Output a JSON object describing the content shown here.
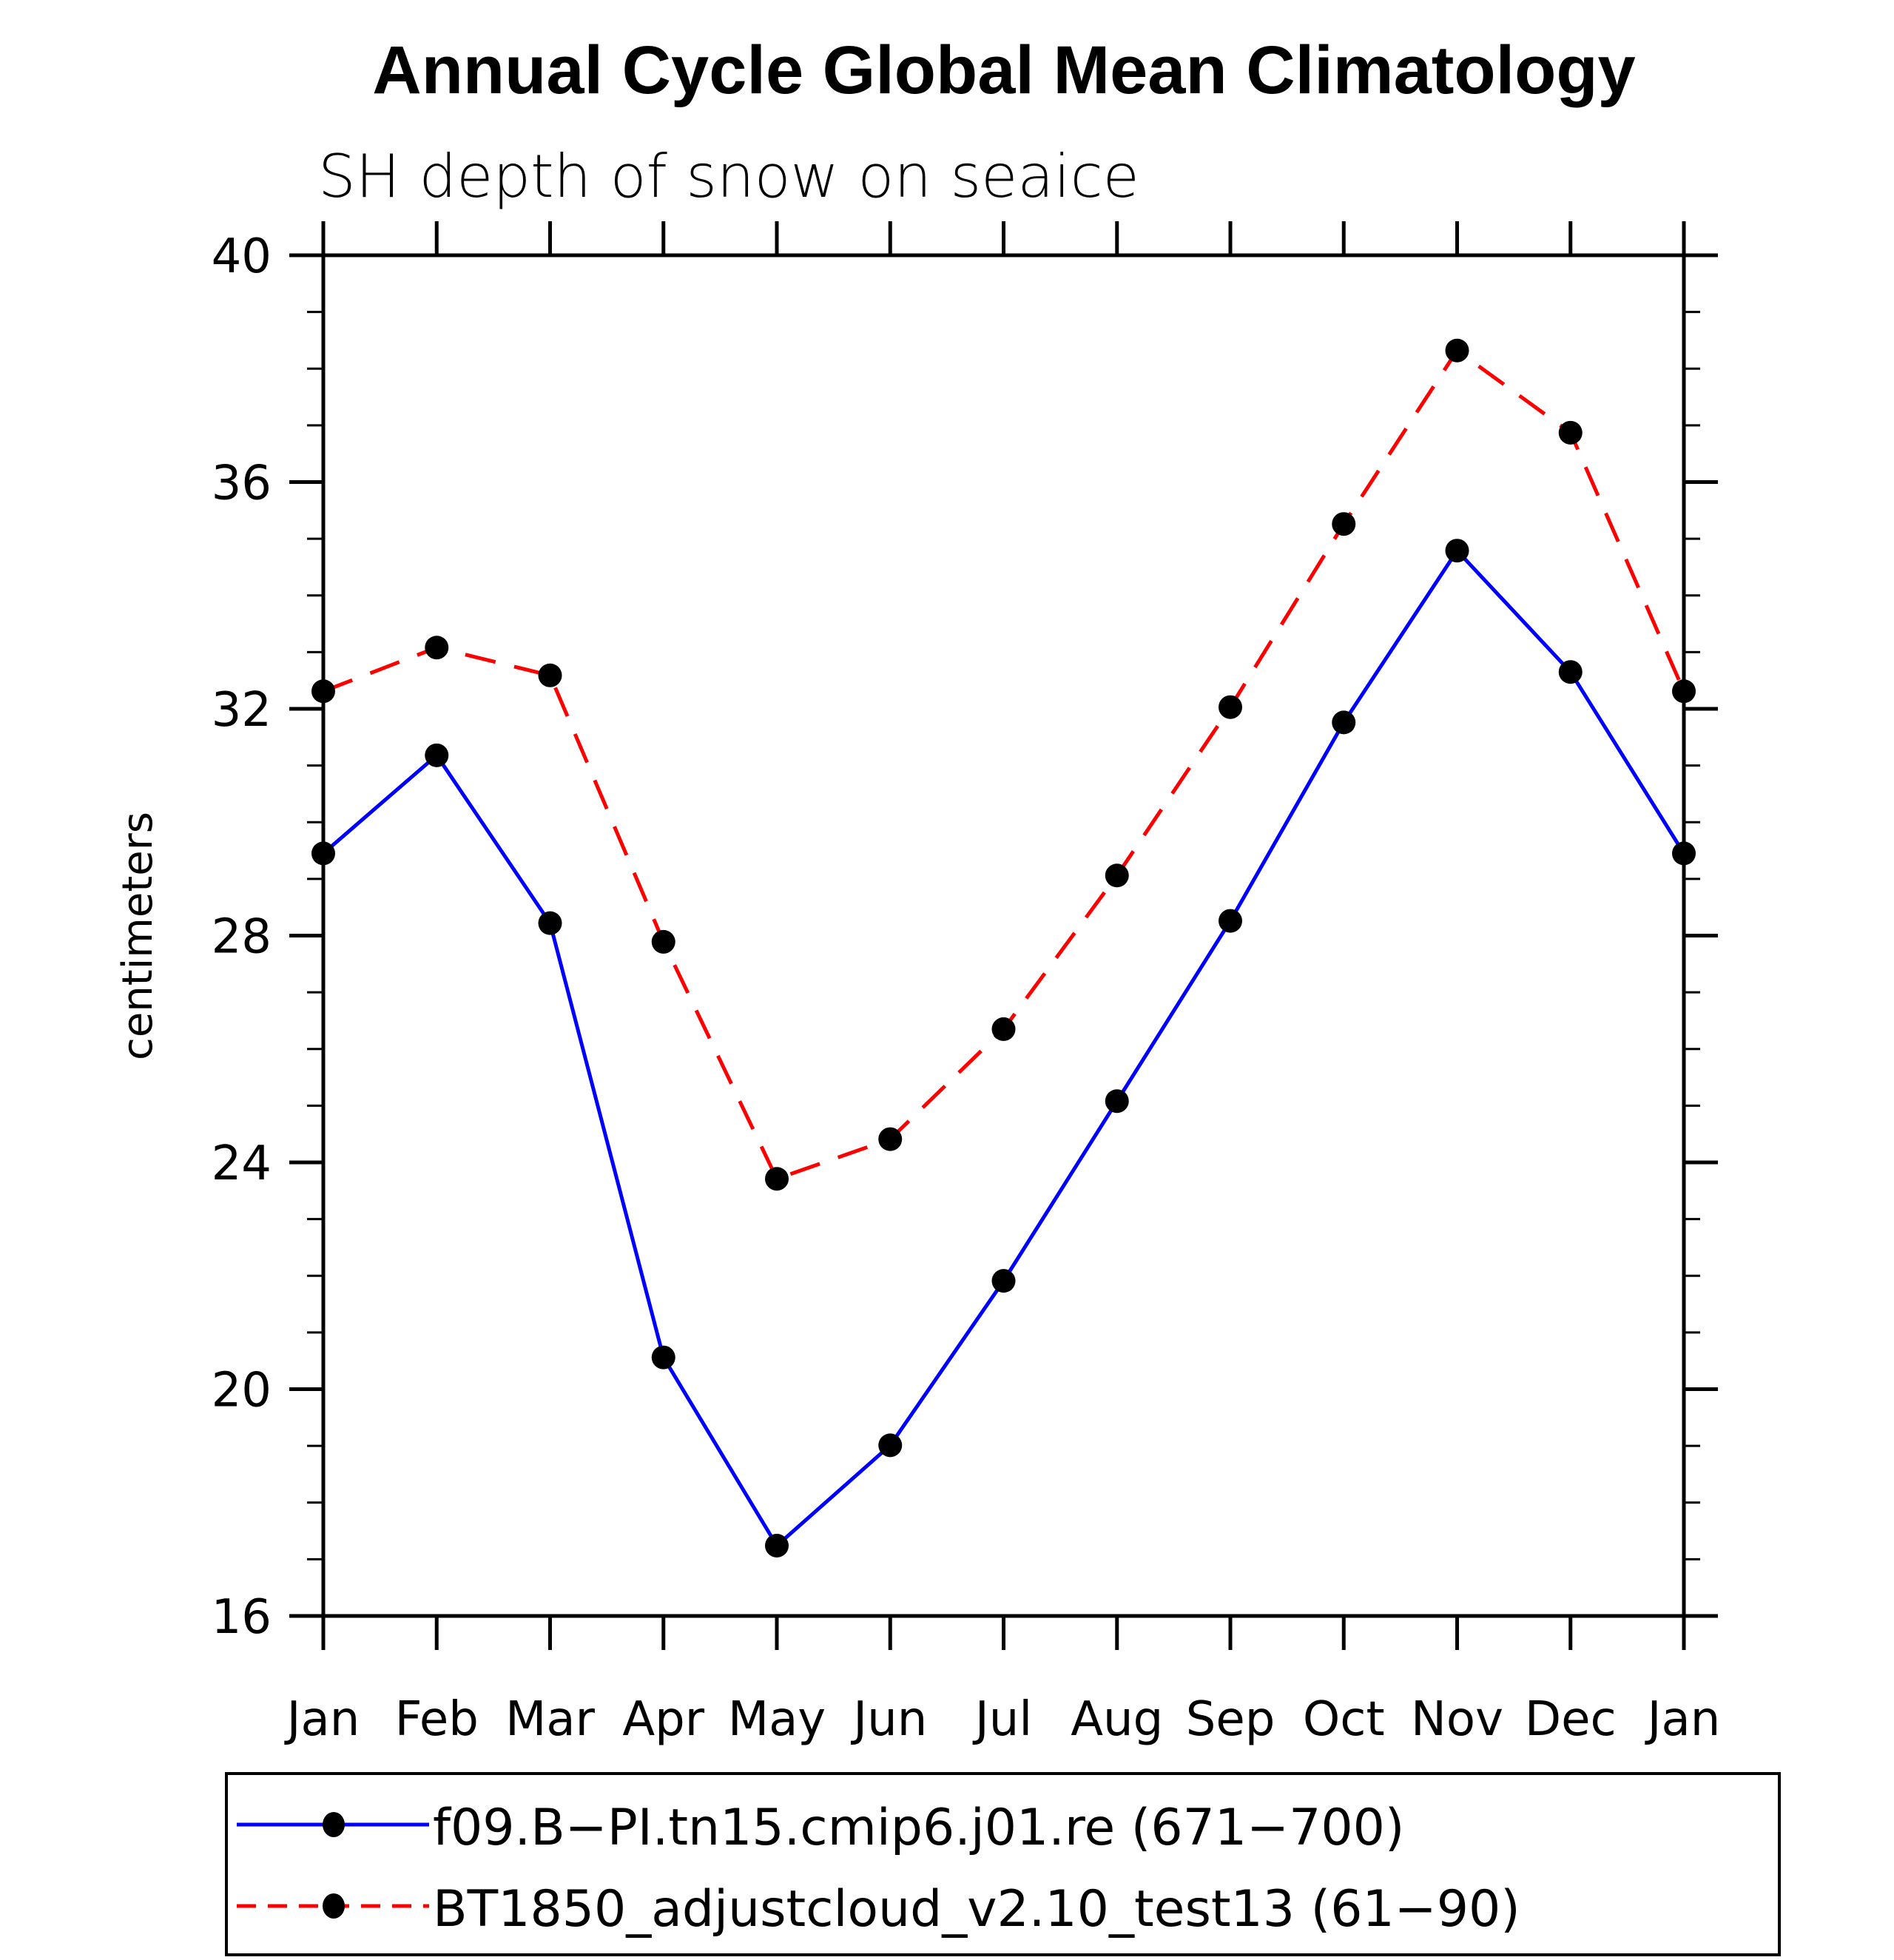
{
  "chart_data": {
    "type": "line",
    "title": "Annual Cycle Global Mean Climatology",
    "subtitle": "SH depth of snow on seaice",
    "xlabel": "",
    "ylabel": "centimeters",
    "categories": [
      "Jan",
      "Feb",
      "Mar",
      "Apr",
      "May",
      "Jun",
      "Jul",
      "Aug",
      "Sep",
      "Oct",
      "Nov",
      "Dec",
      "Jan"
    ],
    "ylim": [
      16,
      40
    ],
    "yticks": [
      16,
      20,
      24,
      28,
      32,
      36,
      40
    ],
    "ytick_labels": [
      "16",
      "20",
      "24",
      "28",
      "32",
      "36",
      "40"
    ],
    "yminor_step": 1,
    "grid": false,
    "legend_position": "bottom",
    "series": [
      {
        "name": "f09.B-PI.tn15.cmip6.j01.re (671-700)",
        "legend_label": "f09.B−PI.tn15.cmip6.j01.re (671−700)",
        "color": "#0000ff",
        "line_style": "solid",
        "marker": "filled-circle",
        "values": [
          29.45,
          31.18,
          28.22,
          20.56,
          17.24,
          19.01,
          21.91,
          25.08,
          28.26,
          31.76,
          34.79,
          32.65,
          29.45
        ]
      },
      {
        "name": "BT1850_adjustcloud_v2.10_test13 (61-90)",
        "legend_label": "BT1850_adjustcloud_v2.10_test13 (61−90)",
        "color": "#ff0000",
        "line_style": "dashed",
        "marker": "filled-circle",
        "values": [
          32.31,
          33.08,
          32.59,
          27.89,
          23.71,
          24.41,
          26.35,
          29.06,
          32.03,
          35.26,
          38.32,
          36.87,
          32.31
        ]
      }
    ]
  }
}
